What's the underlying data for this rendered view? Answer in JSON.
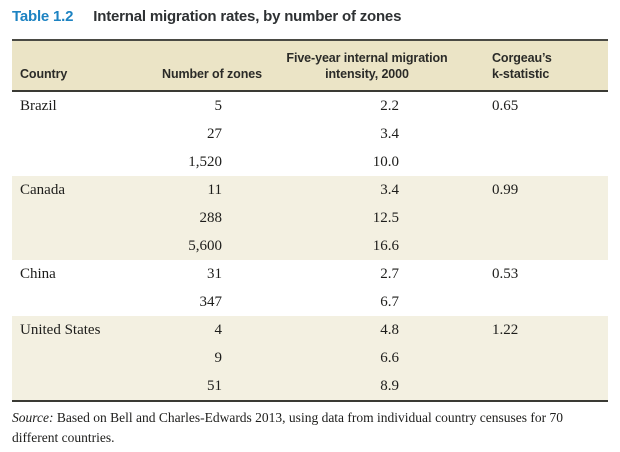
{
  "title": {
    "label": "Table 1.2",
    "text": "Internal migration rates, by number of zones"
  },
  "table": {
    "headers": [
      {
        "name": "country",
        "lines": [
          "Country"
        ]
      },
      {
        "name": "zones",
        "lines": [
          "Number of zones"
        ]
      },
      {
        "name": "intensity",
        "lines": [
          "Five-year internal migration",
          "intensity, 2000"
        ]
      },
      {
        "name": "k",
        "lines": [
          "Corgeau’s",
          "k-statistic"
        ]
      }
    ],
    "groups": [
      {
        "country": "Brazil",
        "shaded": false,
        "rows": [
          {
            "zones": "5",
            "intensity": "2.2",
            "k": "0.65"
          },
          {
            "zones": "27",
            "intensity": "3.4",
            "k": ""
          },
          {
            "zones": "1,520",
            "intensity": "10.0",
            "k": ""
          }
        ]
      },
      {
        "country": "Canada",
        "shaded": true,
        "rows": [
          {
            "zones": "11",
            "intensity": "3.4",
            "k": "0.99"
          },
          {
            "zones": "288",
            "intensity": "12.5",
            "k": ""
          },
          {
            "zones": "5,600",
            "intensity": "16.6",
            "k": ""
          }
        ]
      },
      {
        "country": "China",
        "shaded": false,
        "rows": [
          {
            "zones": "31",
            "intensity": "2.7",
            "k": "0.53"
          },
          {
            "zones": "347",
            "intensity": "6.7",
            "k": ""
          }
        ]
      },
      {
        "country": "United States",
        "shaded": true,
        "rows": [
          {
            "zones": "4",
            "intensity": "4.8",
            "k": "1.22"
          },
          {
            "zones": "9",
            "intensity": "6.6",
            "k": ""
          },
          {
            "zones": "51",
            "intensity": "8.9",
            "k": ""
          }
        ]
      }
    ]
  },
  "chart_data": {
    "type": "table",
    "columns": [
      "Country",
      "Number of zones",
      "Five-year internal migration intensity, 2000",
      "Corgeau's k-statistic"
    ],
    "rows": [
      [
        "Brazil",
        "5",
        "2.2",
        "0.65"
      ],
      [
        "",
        "27",
        "3.4",
        ""
      ],
      [
        "",
        "1,520",
        "10.0",
        ""
      ],
      [
        "Canada",
        "11",
        "3.4",
        "0.99"
      ],
      [
        "",
        "288",
        "12.5",
        ""
      ],
      [
        "",
        "5,600",
        "16.6",
        ""
      ],
      [
        "China",
        "31",
        "2.7",
        "0.53"
      ],
      [
        "",
        "347",
        "6.7",
        ""
      ],
      [
        "United States",
        "4",
        "4.8",
        "1.22"
      ],
      [
        "",
        "9",
        "6.6",
        ""
      ],
      [
        "",
        "51",
        "8.9",
        ""
      ]
    ]
  },
  "source": {
    "label": "Source:",
    "text": "Based on Bell and Charles-Edwards 2013, using data from individual country censuses for 70 different countries."
  },
  "colors": {
    "accent_blue": "#1d83c2",
    "header_band": "#ebe4c6",
    "group_band": "#f3f0e1",
    "rule": "#3a3a34",
    "text": "#1d1d1b"
  }
}
